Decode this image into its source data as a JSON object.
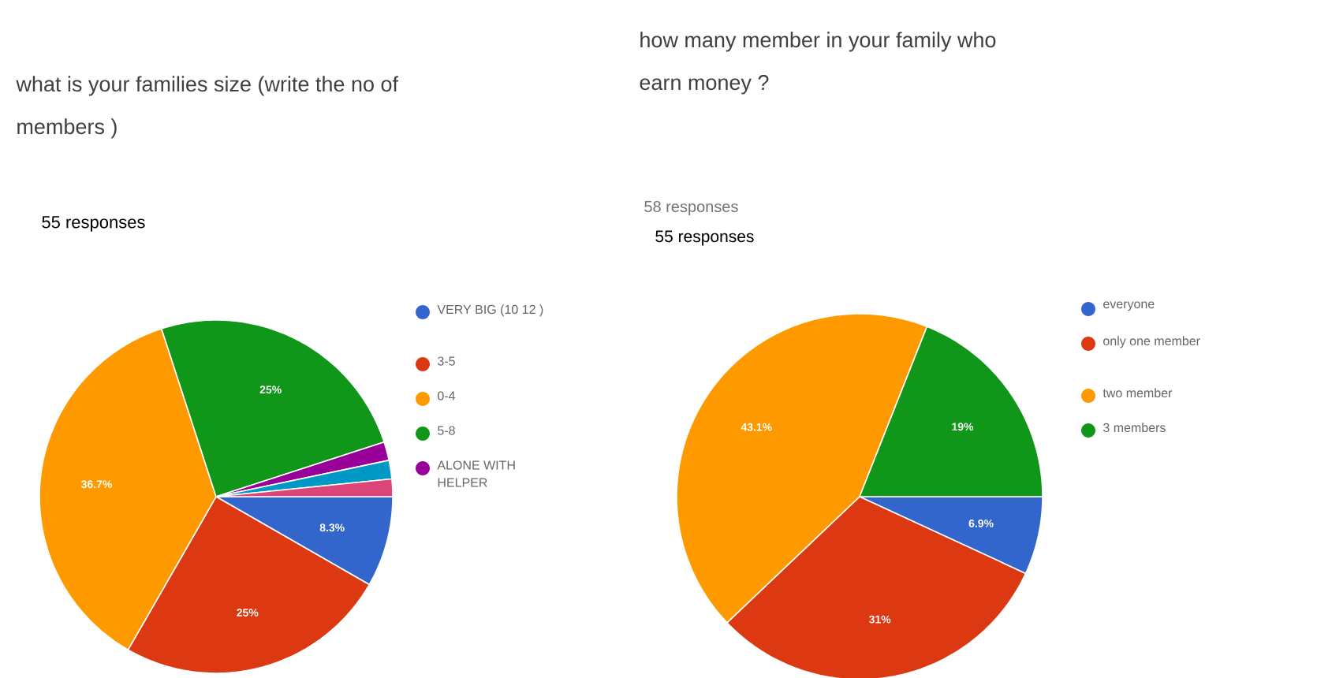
{
  "chart_data": [
    {
      "type": "pie",
      "title": "what is your families size (write the no of members )",
      "subtitle": "55 responses",
      "categories": [
        "VERY BIG (10 12 )",
        "3-5",
        "0-4",
        "5-8",
        "ALONE WITH HELPER",
        null,
        null
      ],
      "values": [
        8.3,
        25,
        36.7,
        25,
        1.7,
        1.7,
        1.6
      ],
      "colors": [
        "#3366cc",
        "#dc3912",
        "#ff9900",
        "#109618",
        "#990099",
        "#0099c6",
        "#dd4477"
      ],
      "value_labels": [
        "8.3%",
        "25%",
        "36.7%",
        "25%",
        null,
        null,
        null
      ],
      "legend": "right"
    },
    {
      "type": "pie",
      "title": "how many  member  in your  family who earn money ?",
      "subtitle": "58 responses",
      "annotations": [
        "55 responses"
      ],
      "categories": [
        "everyone",
        "only one member",
        "two member",
        "3 members"
      ],
      "values": [
        6.9,
        31,
        43.1,
        19
      ],
      "colors": [
        "#3366cc",
        "#dc3912",
        "#ff9900",
        "#109618"
      ],
      "value_labels": [
        "6.9%",
        "31%",
        "43.1%",
        "19%"
      ],
      "legend": "right"
    }
  ]
}
